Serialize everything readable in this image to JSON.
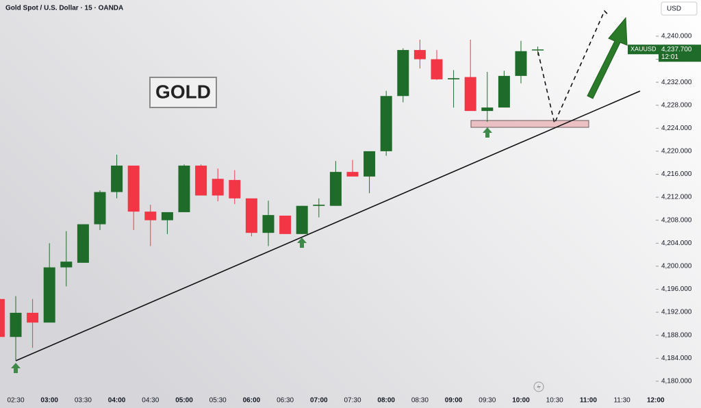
{
  "chart_data": {
    "type": "candlestick",
    "title": "Gold Spot / U.S. Dollar · 15 · OANDA",
    "annotation": "GOLD",
    "currency": "USD",
    "symbol": "XAUUSD",
    "current_price": {
      "value": 4237.7,
      "label": "4,237.700"
    },
    "countdown": "12:01",
    "up_color": "#1e6b2a",
    "down_color": "#f23645",
    "categories": [
      null,
      "02:30",
      null,
      "03:00",
      null,
      "03:30",
      null,
      "04:00",
      null,
      "04:30",
      null,
      "05:00",
      null,
      "05:30",
      null,
      "06:00",
      null,
      "06:30",
      null,
      "07:00",
      null,
      "07:30",
      null,
      "08:00",
      null,
      "08:30",
      null,
      "09:00",
      null,
      "09:30",
      null,
      "10:00",
      null,
      "10:30",
      null,
      "11:00",
      null,
      "11:30",
      null,
      "12:00"
    ],
    "open": [
      4194.3,
      4187.7,
      4191.9,
      4190.2,
      4199.8,
      4200.6,
      4207.3,
      4212.9,
      4217.5,
      4209.5,
      4208.0,
      4209.4,
      4217.5,
      4215.2,
      4215.0,
      4211.8,
      4205.8,
      4208.8,
      4205.6,
      4210.5,
      4210.5,
      4216.4,
      4215.6,
      4220.0,
      4229.6,
      4237.6,
      4236.0,
      4232.5,
      4232.9,
      4227.0,
      4227.6,
      4233.1,
      4237.6,
      null,
      null,
      null,
      null,
      null,
      null,
      null
    ],
    "high": [
      4194.3,
      4194.8,
      4194.3,
      4204.0,
      4206.1,
      4207.3,
      4213.2,
      4219.4,
      4217.5,
      4210.7,
      4209.4,
      4217.7,
      4217.7,
      4217.0,
      4216.7,
      4211.8,
      4211.4,
      4208.8,
      4210.5,
      4211.8,
      4218.3,
      4218.5,
      4220.0,
      4230.5,
      4237.9,
      4239.4,
      4237.6,
      4234.1,
      4239.4,
      4233.8,
      4234.0,
      4239.2,
      4238.2,
      null,
      null,
      null,
      null,
      null,
      null,
      null
    ],
    "low": [
      4187.7,
      4183.6,
      4185.8,
      4190.2,
      4196.5,
      4200.6,
      4206.3,
      4211.8,
      4206.3,
      4203.5,
      4205.6,
      4209.4,
      4212.3,
      4211.3,
      4210.8,
      4205.2,
      4203.5,
      4205.6,
      4205.6,
      4208.5,
      4210.5,
      4215.6,
      4212.7,
      4219.2,
      4228.5,
      4234.4,
      4232.4,
      4227.6,
      4227.0,
      4225.1,
      4227.6,
      4231.8,
      4236.7,
      null,
      null,
      null,
      null,
      null,
      null,
      null
    ],
    "close": [
      4187.7,
      4191.9,
      4190.2,
      4199.8,
      4200.8,
      4207.3,
      4212.9,
      4217.5,
      4209.5,
      4208.0,
      4209.4,
      4217.5,
      4212.3,
      4212.3,
      4211.8,
      4205.8,
      4208.9,
      4205.6,
      4210.5,
      4210.7,
      4216.4,
      4215.6,
      4220.0,
      4229.6,
      4237.6,
      4236.0,
      4232.5,
      4232.7,
      4227.0,
      4227.6,
      4233.1,
      4237.4,
      4237.7,
      null,
      null,
      null,
      null,
      null,
      null,
      null
    ],
    "ylim": [
      4178.2,
      4246.3
    ],
    "yticks": [
      {
        "value": 4180,
        "label": "4,180.000"
      },
      {
        "value": 4184,
        "label": "4,184.000"
      },
      {
        "value": 4188,
        "label": "4,188.000"
      },
      {
        "value": 4192,
        "label": "4,192.000"
      },
      {
        "value": 4196,
        "label": "4,196.000"
      },
      {
        "value": 4200,
        "label": "4,200.000"
      },
      {
        "value": 4204,
        "label": "4,204.000"
      },
      {
        "value": 4208,
        "label": "4,208.000"
      },
      {
        "value": 4212,
        "label": "4,212.000"
      },
      {
        "value": 4216,
        "label": "4,216.000"
      },
      {
        "value": 4220,
        "label": "4,220.000"
      },
      {
        "value": 4224,
        "label": "4,224.000"
      },
      {
        "value": 4228,
        "label": "4,228.000"
      },
      {
        "value": 4232,
        "label": "4,232.000"
      },
      {
        "value": 4236,
        "label": "4,236.000"
      },
      {
        "value": 4240,
        "label": "4,240.000"
      }
    ]
  }
}
